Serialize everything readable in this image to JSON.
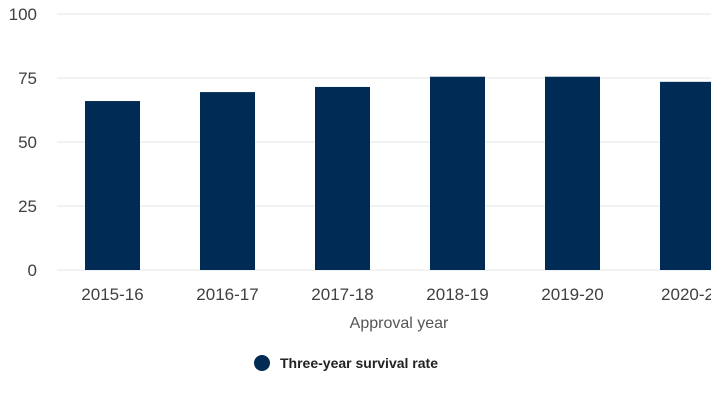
{
  "chart_data": {
    "type": "bar",
    "categories": [
      "2015-16",
      "2016-17",
      "2017-18",
      "2018-19",
      "2019-20",
      "2020-2"
    ],
    "series": [
      {
        "name": "Three-year survival rate",
        "values": [
          66,
          69.5,
          71.5,
          75.5,
          75.5,
          73.5
        ]
      }
    ],
    "xlabel": "Approval year",
    "ylabel": "",
    "ylim": [
      0,
      100
    ],
    "yticks": [
      "0",
      "25",
      "50",
      "75",
      "100"
    ],
    "grid": true,
    "legend_position": "bottom",
    "colors": {
      "bar": "#002b54",
      "grid": "#e6e6e6"
    }
  }
}
